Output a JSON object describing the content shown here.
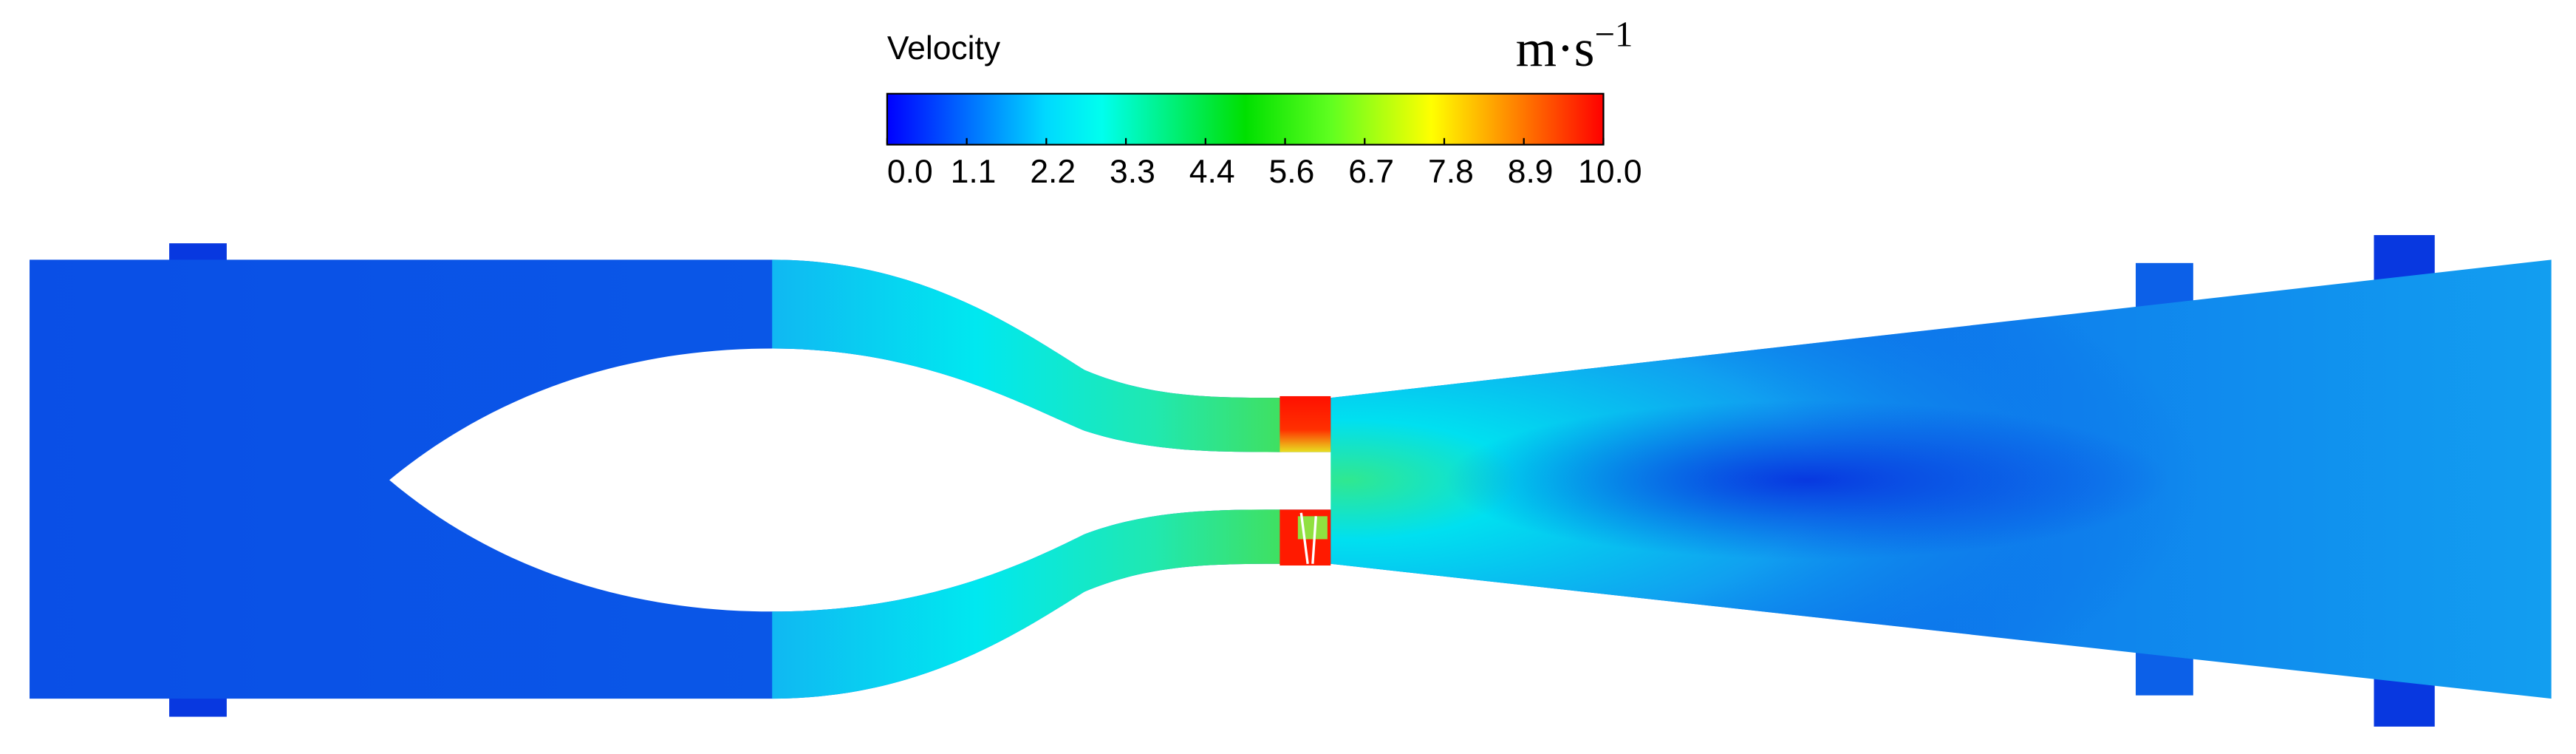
{
  "colorbar": {
    "title": "Velocity",
    "unit": "m·s",
    "unit_exponent": "−1",
    "ticks": [
      "0.0",
      "1.1",
      "2.2",
      "3.3",
      "4.4",
      "5.6",
      "6.7",
      "7.8",
      "8.9",
      "10.0"
    ]
  }
}
